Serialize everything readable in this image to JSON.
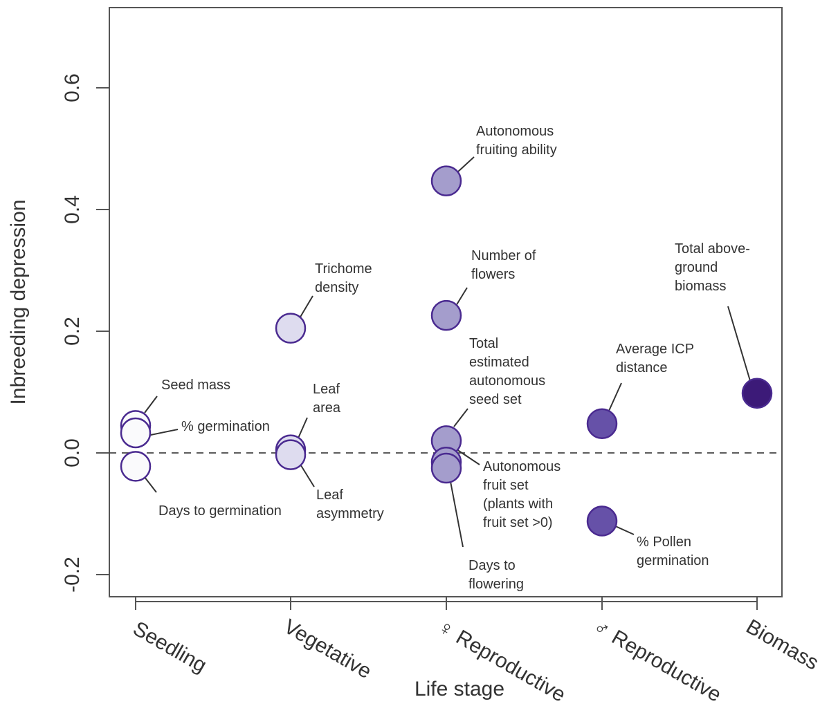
{
  "chart_data": {
    "type": "scatter",
    "xlabel": "Life stage",
    "ylabel": "Inbreeding depression",
    "ylim": [
      -0.25,
      0.75
    ],
    "yticks": [
      -0.2,
      0.0,
      0.2,
      0.4,
      0.6
    ],
    "ytick_labels": [
      "-0.2",
      "0.0",
      "0.2",
      "0.4",
      "0.6"
    ],
    "categories": [
      "Seedling",
      "Vegetative",
      "♀ Reproductive",
      "♂ Reproductive",
      "Biomass"
    ],
    "reference_line": {
      "y": 0,
      "style": "dashed"
    },
    "category_colors": [
      "#fafafc",
      "#dedcef",
      "#a49dcc",
      "#6651a8",
      "#3c1a78"
    ],
    "stroke_color": "#4a2a90",
    "grid": false,
    "legend": "none",
    "points": [
      {
        "category": "Seedling",
        "y": 0.045,
        "label_lines": [
          "Seed mass"
        ]
      },
      {
        "category": "Seedling",
        "y": 0.033,
        "label_lines": [
          "% germination"
        ]
      },
      {
        "category": "Seedling",
        "y": -0.022,
        "label_lines": [
          "Days to germination"
        ]
      },
      {
        "category": "Vegetative",
        "y": 0.205,
        "label_lines": [
          "Trichome",
          "density"
        ]
      },
      {
        "category": "Vegetative",
        "y": 0.005,
        "label_lines": [
          "Leaf",
          "area"
        ]
      },
      {
        "category": "Vegetative",
        "y": -0.003,
        "label_lines": [
          "Leaf",
          "asymmetry"
        ]
      },
      {
        "category": "♀ Reproductive",
        "y": 0.447,
        "label_lines": [
          "Autonomous",
          "fruiting ability"
        ]
      },
      {
        "category": "♀ Reproductive",
        "y": 0.226,
        "label_lines": [
          "Number of",
          "flowers"
        ]
      },
      {
        "category": "♀ Reproductive",
        "y": 0.02,
        "label_lines": [
          "Total",
          "estimated",
          "autonomous",
          "seed set"
        ]
      },
      {
        "category": "♀ Reproductive",
        "y": -0.015,
        "label_lines": [
          "Autonomous",
          "fruit set",
          "(plants with",
          "fruit set >0)"
        ]
      },
      {
        "category": "♀ Reproductive",
        "y": -0.025,
        "label_lines": [
          "Days to",
          "flowering"
        ]
      },
      {
        "category": "♂ Reproductive",
        "y": 0.048,
        "label_lines": [
          "Average ICP",
          "distance"
        ]
      },
      {
        "category": "♂ Reproductive",
        "y": -0.112,
        "label_lines": [
          "% Pollen",
          "germination"
        ]
      },
      {
        "category": "Biomass",
        "y": 0.098,
        "label_lines": [
          "Total above-",
          "ground",
          "biomass"
        ]
      }
    ]
  }
}
